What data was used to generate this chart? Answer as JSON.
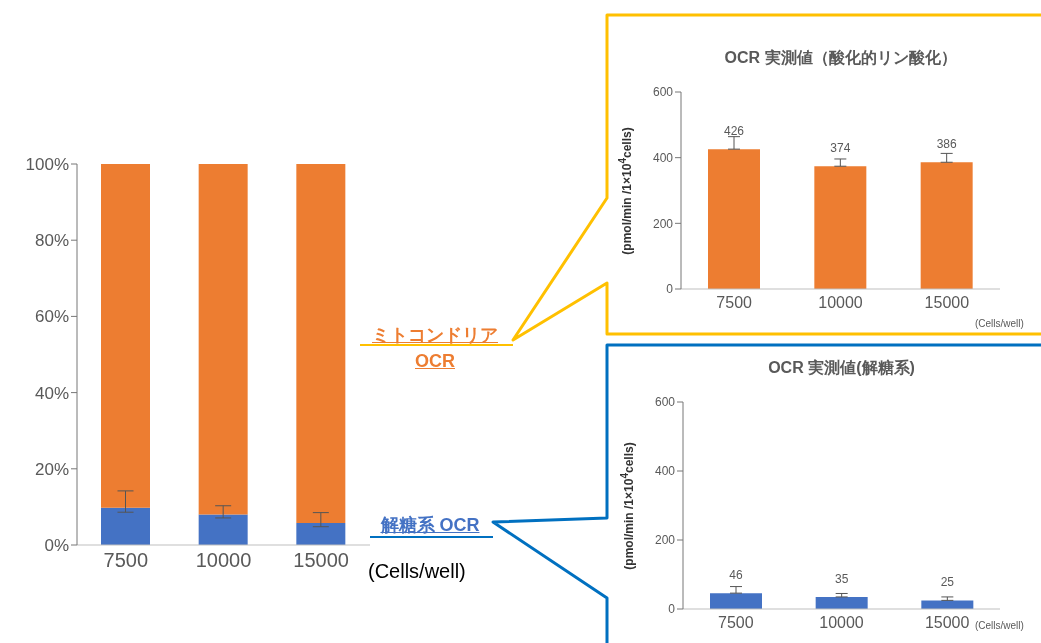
{
  "chart_data": [
    {
      "type": "bar",
      "stacked": true,
      "categories": [
        "7500",
        "10000",
        "15000"
      ],
      "xlabel": "(Cells/well)",
      "ylim": [
        0,
        100
      ],
      "yticks": [
        {
          "value": 0,
          "label": "0%"
        },
        {
          "value": 20,
          "label": "20%"
        },
        {
          "value": 40,
          "label": "40%"
        },
        {
          "value": 60,
          "label": "60%"
        },
        {
          "value": 80,
          "label": "80%"
        },
        {
          "value": 100,
          "label": "100%"
        }
      ],
      "series": [
        {
          "name": "解糖系 OCR",
          "color": "#4472c4",
          "values": [
            9.8,
            8.0,
            5.8
          ],
          "errors": [
            [
              8.6,
              14.2
            ],
            [
              7.1,
              10.3
            ],
            [
              4.8,
              8.5
            ]
          ]
        },
        {
          "name": "ミトコンドリア OCR",
          "color": "#ed7d31",
          "values": [
            90.2,
            92.0,
            94.2
          ]
        }
      ]
    },
    {
      "type": "bar",
      "title": "OCR 実測値（酸化的リン酸化）",
      "ylabel": "(pmol/min /1×10$^{4}$cells)",
      "xlabel": "(Cells/well)",
      "categories": [
        "7500",
        "10000",
        "15000"
      ],
      "ylim": [
        0,
        600
      ],
      "yticks": [
        0,
        200,
        400,
        600
      ],
      "data_labels": true,
      "series": [
        {
          "color": "#ed7d31",
          "values": [
            426,
            374,
            386
          ],
          "errors": [
            [
              426,
              464
            ],
            [
              374,
              396
            ],
            [
              386,
              413
            ]
          ]
        }
      ]
    },
    {
      "type": "bar",
      "title": "OCR 実測値(解糖系)",
      "ylabel": "(pmol/min /1×10$^{4}$cells)",
      "xlabel": "(Cells/well)",
      "categories": [
        "7500",
        "10000",
        "15000"
      ],
      "ylim": [
        0,
        600
      ],
      "yticks": [
        0,
        200,
        400,
        600
      ],
      "data_labels": true,
      "series": [
        {
          "color": "#4472c4",
          "values": [
            46,
            35,
            25
          ],
          "errors": [
            [
              46,
              65
            ],
            [
              35,
              45
            ],
            [
              25,
              35
            ]
          ]
        }
      ]
    }
  ]
}
